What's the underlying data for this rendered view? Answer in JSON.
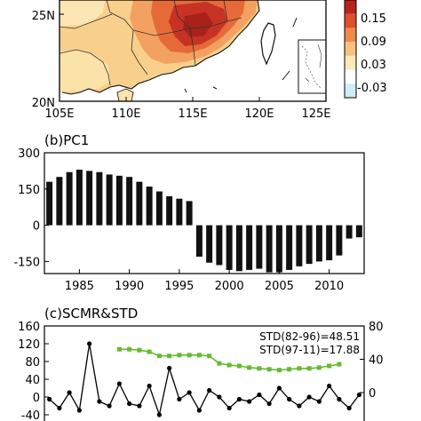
{
  "chart_data": [
    {
      "type": "heatmap",
      "panel": "a",
      "title": "",
      "x_ticks": [
        "105E",
        "110E",
        "115E",
        "120E",
        "125E"
      ],
      "y_ticks": [
        "20N",
        "25N"
      ],
      "colorbar": {
        "labels": [
          "0.15",
          "0.09",
          "0.03",
          "-0.03"
        ],
        "colors": [
          "#b7241c",
          "#de4f2c",
          "#f08a4b",
          "#f9c27c",
          "#fce9b8",
          "#ffffff",
          "#cdeef8"
        ]
      }
    },
    {
      "type": "bar",
      "panel": "b",
      "title": "(b)PC1",
      "years": [
        1982,
        1983,
        1984,
        1985,
        1986,
        1987,
        1988,
        1989,
        1990,
        1991,
        1992,
        1993,
        1994,
        1995,
        1996,
        1997,
        1998,
        1999,
        2000,
        2001,
        2002,
        2003,
        2004,
        2005,
        2006,
        2007,
        2008,
        2009,
        2010,
        2011,
        2012,
        2013
      ],
      "values": [
        180,
        200,
        220,
        230,
        225,
        220,
        210,
        205,
        200,
        180,
        160,
        140,
        120,
        110,
        100,
        -130,
        -155,
        -165,
        -185,
        -190,
        -185,
        -180,
        -195,
        -195,
        -185,
        -170,
        -160,
        -150,
        -145,
        -125,
        -55,
        -50
      ],
      "y_ticks": [
        "300",
        "150",
        "0",
        "-150"
      ],
      "x_ticks": [
        "1985",
        "1990",
        "1995",
        "2000",
        "2005",
        "2010"
      ],
      "ylim": [
        -200,
        300
      ]
    },
    {
      "type": "line",
      "panel": "c",
      "title": "(c)SCMR&STD",
      "annotations": [
        "STD(82-96)=48.51",
        "STD(97-11)=17.88"
      ],
      "left_y_ticks": [
        "160",
        "120",
        "80",
        "40",
        "0",
        "-40"
      ],
      "right_y_ticks": [
        "80",
        "40",
        "0"
      ],
      "scmr": {
        "years": [
          1982,
          1983,
          1984,
          1985,
          1986,
          1987,
          1988,
          1989,
          1990,
          1991,
          1992,
          1993,
          1994,
          1995,
          1996,
          1997,
          1998,
          1999,
          2000,
          2001,
          2002,
          2003,
          2004,
          2005,
          2006,
          2007,
          2008,
          2009,
          2010,
          2011,
          2012,
          2013
        ],
        "values": [
          -5,
          -25,
          10,
          -30,
          120,
          -10,
          -20,
          30,
          -15,
          -20,
          25,
          -40,
          65,
          -5,
          10,
          -30,
          15,
          0,
          -25,
          -5,
          -10,
          5,
          -15,
          20,
          -5,
          -20,
          0,
          -10,
          25,
          -5,
          -25,
          5
        ]
      },
      "std": {
        "years": [
          1989,
          1990,
          1991,
          1992,
          1993,
          1994,
          1995,
          1996,
          1997,
          1998,
          1999,
          2000,
          2001,
          2002,
          2003,
          2004,
          2005,
          2006,
          2007,
          2008,
          2009,
          2010,
          2011
        ],
        "values": [
          52,
          52,
          51,
          49,
          44,
          44,
          45,
          45,
          45,
          44,
          35,
          33,
          32,
          30,
          29,
          28,
          27,
          28,
          29,
          29,
          30,
          32,
          34
        ]
      }
    }
  ]
}
